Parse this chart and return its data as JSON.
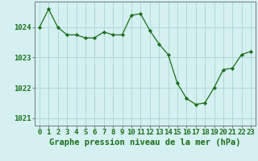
{
  "x": [
    0,
    1,
    2,
    3,
    4,
    5,
    6,
    7,
    8,
    9,
    10,
    11,
    12,
    13,
    14,
    15,
    16,
    17,
    18,
    19,
    20,
    21,
    22,
    23
  ],
  "y": [
    1024.0,
    1024.6,
    1024.0,
    1023.75,
    1023.75,
    1023.65,
    1023.65,
    1023.85,
    1023.75,
    1023.75,
    1024.4,
    1024.45,
    1023.9,
    1023.45,
    1023.1,
    1022.15,
    1021.65,
    1021.45,
    1021.5,
    1022.0,
    1022.6,
    1022.65,
    1023.1,
    1023.2
  ],
  "line_color": "#1a6e1a",
  "marker_color": "#1a6e1a",
  "bg_color": "#d4f0f0",
  "grid_color": "#b0d8d8",
  "axis_label_color": "#1a6e1a",
  "xlabel": "Graphe pression niveau de la mer (hPa)",
  "ylim": [
    1020.75,
    1024.85
  ],
  "yticks": [
    1021,
    1022,
    1023,
    1024
  ],
  "xticks": [
    0,
    1,
    2,
    3,
    4,
    5,
    6,
    7,
    8,
    9,
    10,
    11,
    12,
    13,
    14,
    15,
    16,
    17,
    18,
    19,
    20,
    21,
    22,
    23
  ],
  "tick_fontsize": 6.5,
  "label_fontsize": 7.5,
  "spine_color": "#777777"
}
